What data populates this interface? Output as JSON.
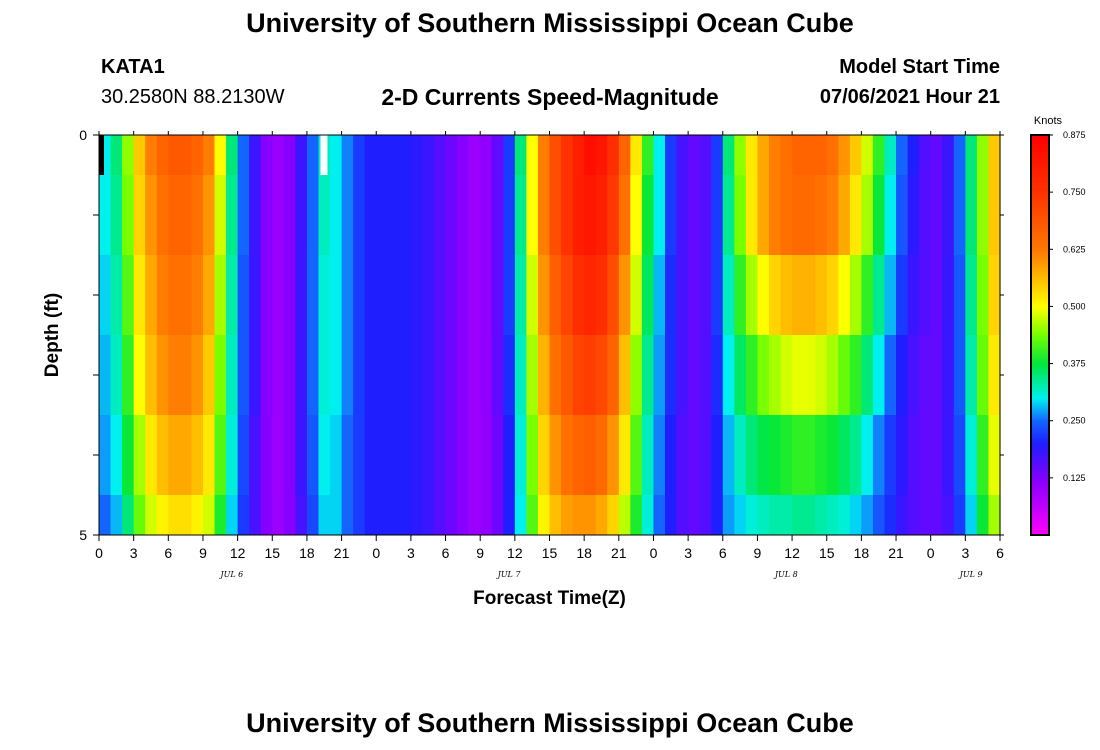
{
  "header": {
    "title": "University of Southern Mississippi Ocean Cube",
    "station_id": "KATA1",
    "station_location": "30.2580N  88.2130W",
    "subtitle": "2-D Currents Speed-Magnitude",
    "model_start_label": "Model Start Time",
    "model_start_value": "07/06/2021 Hour 21"
  },
  "footer": {
    "title": "University of Southern Mississippi Ocean Cube"
  },
  "chart_data": {
    "type": "heatmap",
    "title": "2-D Currents Speed-Magnitude",
    "xlabel": "Forecast Time(Z)",
    "ylabel": "Depth (ft)",
    "x_range_hours": [
      0,
      78
    ],
    "x_tick_labels": [
      "0",
      "3",
      "6",
      "9",
      "12",
      "15",
      "18",
      "21",
      "0",
      "3",
      "6",
      "9",
      "12",
      "15",
      "18",
      "21",
      "0",
      "3",
      "6",
      "9",
      "12",
      "15",
      "18",
      "21",
      "0",
      "3",
      "6"
    ],
    "x_date_labels": [
      {
        "text": "JUL 6",
        "hour": 11.5
      },
      {
        "text": "JUL 7",
        "hour": 35.5
      },
      {
        "text": "JUL 8",
        "hour": 59.5
      },
      {
        "text": "JUL 9",
        "hour": 75.5
      }
    ],
    "y_tick_labels": [
      "0",
      "5"
    ],
    "y_range_ft": [
      0,
      5
    ],
    "depth_levels": 5,
    "colorbar": {
      "unit": "Knots",
      "min": 0.0,
      "max": 0.875,
      "tick_labels": [
        "0.125",
        "0.250",
        "0.375",
        "0.500",
        "0.625",
        "0.750",
        "0.875"
      ],
      "tick_values": [
        0.125,
        0.25,
        0.375,
        0.5,
        0.625,
        0.75,
        0.875
      ]
    },
    "hourly_speed_by_depth": [
      [
        0.3,
        0.35,
        0.45,
        0.55,
        0.62,
        0.66,
        0.68,
        0.68,
        0.66,
        0.62,
        0.5,
        0.35,
        0.25,
        0.18,
        0.12,
        0.1,
        0.12,
        0.18,
        0.25,
        0.32,
        0.3,
        0.26,
        0.22,
        0.2,
        0.2,
        0.2,
        0.2,
        0.19,
        0.18,
        0.16,
        0.14,
        0.12,
        0.1,
        0.11,
        0.15,
        0.22,
        0.35,
        0.5,
        0.62,
        0.7,
        0.75,
        0.8,
        0.84,
        0.82,
        0.76,
        0.66,
        0.52,
        0.4,
        0.3,
        0.22,
        0.17,
        0.15,
        0.16,
        0.22,
        0.35,
        0.45,
        0.52,
        0.58,
        0.62,
        0.64,
        0.66,
        0.66,
        0.66,
        0.64,
        0.6,
        0.55,
        0.48,
        0.4,
        0.32,
        0.25,
        0.2,
        0.16,
        0.15,
        0.18,
        0.25,
        0.35,
        0.45,
        0.55,
        0.6
      ],
      [
        0.3,
        0.34,
        0.44,
        0.54,
        0.6,
        0.64,
        0.66,
        0.66,
        0.64,
        0.6,
        0.48,
        0.34,
        0.25,
        0.18,
        0.12,
        0.1,
        0.12,
        0.18,
        0.25,
        0.32,
        0.3,
        0.26,
        0.22,
        0.2,
        0.2,
        0.2,
        0.2,
        0.19,
        0.18,
        0.16,
        0.14,
        0.12,
        0.1,
        0.11,
        0.15,
        0.22,
        0.34,
        0.5,
        0.62,
        0.7,
        0.75,
        0.8,
        0.82,
        0.8,
        0.74,
        0.64,
        0.5,
        0.38,
        0.3,
        0.22,
        0.17,
        0.15,
        0.16,
        0.22,
        0.34,
        0.44,
        0.52,
        0.58,
        0.62,
        0.64,
        0.65,
        0.65,
        0.64,
        0.62,
        0.58,
        0.52,
        0.46,
        0.38,
        0.3,
        0.24,
        0.19,
        0.16,
        0.15,
        0.18,
        0.25,
        0.35,
        0.45,
        0.55,
        0.6
      ],
      [
        0.29,
        0.33,
        0.42,
        0.52,
        0.58,
        0.62,
        0.64,
        0.64,
        0.62,
        0.58,
        0.46,
        0.33,
        0.24,
        0.18,
        0.12,
        0.1,
        0.12,
        0.18,
        0.25,
        0.31,
        0.3,
        0.26,
        0.22,
        0.2,
        0.2,
        0.2,
        0.2,
        0.19,
        0.18,
        0.16,
        0.14,
        0.12,
        0.1,
        0.11,
        0.15,
        0.22,
        0.33,
        0.48,
        0.6,
        0.67,
        0.72,
        0.76,
        0.78,
        0.76,
        0.7,
        0.6,
        0.48,
        0.36,
        0.28,
        0.21,
        0.17,
        0.15,
        0.16,
        0.22,
        0.32,
        0.4,
        0.46,
        0.5,
        0.54,
        0.56,
        0.57,
        0.57,
        0.56,
        0.54,
        0.5,
        0.46,
        0.4,
        0.34,
        0.28,
        0.22,
        0.18,
        0.16,
        0.15,
        0.18,
        0.24,
        0.34,
        0.44,
        0.54,
        0.58
      ],
      [
        0.28,
        0.32,
        0.4,
        0.5,
        0.56,
        0.6,
        0.62,
        0.62,
        0.6,
        0.55,
        0.44,
        0.32,
        0.24,
        0.18,
        0.12,
        0.1,
        0.12,
        0.18,
        0.25,
        0.31,
        0.3,
        0.26,
        0.22,
        0.2,
        0.2,
        0.2,
        0.2,
        0.19,
        0.18,
        0.16,
        0.14,
        0.12,
        0.1,
        0.11,
        0.15,
        0.21,
        0.32,
        0.46,
        0.57,
        0.64,
        0.68,
        0.72,
        0.73,
        0.71,
        0.66,
        0.56,
        0.45,
        0.34,
        0.27,
        0.21,
        0.17,
        0.15,
        0.16,
        0.21,
        0.3,
        0.36,
        0.4,
        0.44,
        0.46,
        0.48,
        0.49,
        0.49,
        0.48,
        0.46,
        0.43,
        0.4,
        0.35,
        0.3,
        0.25,
        0.2,
        0.17,
        0.15,
        0.15,
        0.18,
        0.24,
        0.33,
        0.43,
        0.52,
        0.56
      ],
      [
        0.27,
        0.3,
        0.38,
        0.46,
        0.52,
        0.56,
        0.58,
        0.58,
        0.56,
        0.52,
        0.42,
        0.31,
        0.23,
        0.17,
        0.12,
        0.1,
        0.12,
        0.18,
        0.24,
        0.3,
        0.29,
        0.25,
        0.22,
        0.2,
        0.2,
        0.2,
        0.2,
        0.19,
        0.18,
        0.16,
        0.14,
        0.12,
        0.1,
        0.11,
        0.14,
        0.2,
        0.31,
        0.44,
        0.54,
        0.6,
        0.64,
        0.66,
        0.67,
        0.65,
        0.6,
        0.52,
        0.42,
        0.32,
        0.26,
        0.2,
        0.16,
        0.15,
        0.16,
        0.2,
        0.28,
        0.32,
        0.35,
        0.37,
        0.38,
        0.39,
        0.4,
        0.4,
        0.39,
        0.38,
        0.36,
        0.34,
        0.3,
        0.26,
        0.22,
        0.19,
        0.16,
        0.15,
        0.15,
        0.18,
        0.23,
        0.31,
        0.4,
        0.49,
        0.53
      ],
      [
        0.25,
        0.28,
        0.35,
        0.43,
        0.48,
        0.51,
        0.53,
        0.53,
        0.51,
        0.48,
        0.39,
        0.29,
        0.22,
        0.17,
        0.12,
        0.1,
        0.12,
        0.17,
        0.23,
        0.29,
        0.29,
        0.25,
        0.22,
        0.2,
        0.2,
        0.2,
        0.2,
        0.19,
        0.18,
        0.16,
        0.14,
        0.12,
        0.1,
        0.11,
        0.14,
        0.2,
        0.3,
        0.42,
        0.51,
        0.56,
        0.59,
        0.6,
        0.6,
        0.58,
        0.54,
        0.47,
        0.39,
        0.31,
        0.25,
        0.2,
        0.16,
        0.15,
        0.16,
        0.2,
        0.27,
        0.29,
        0.31,
        0.32,
        0.33,
        0.33,
        0.34,
        0.34,
        0.33,
        0.32,
        0.31,
        0.29,
        0.27,
        0.24,
        0.21,
        0.18,
        0.16,
        0.15,
        0.15,
        0.17,
        0.22,
        0.29,
        0.38,
        0.46,
        0.5
      ]
    ],
    "missing_cells": [
      {
        "hour": 0,
        "depth_row": 0,
        "color": "black"
      },
      {
        "hour": 19,
        "depth_row": 0,
        "color": "white"
      }
    ]
  }
}
